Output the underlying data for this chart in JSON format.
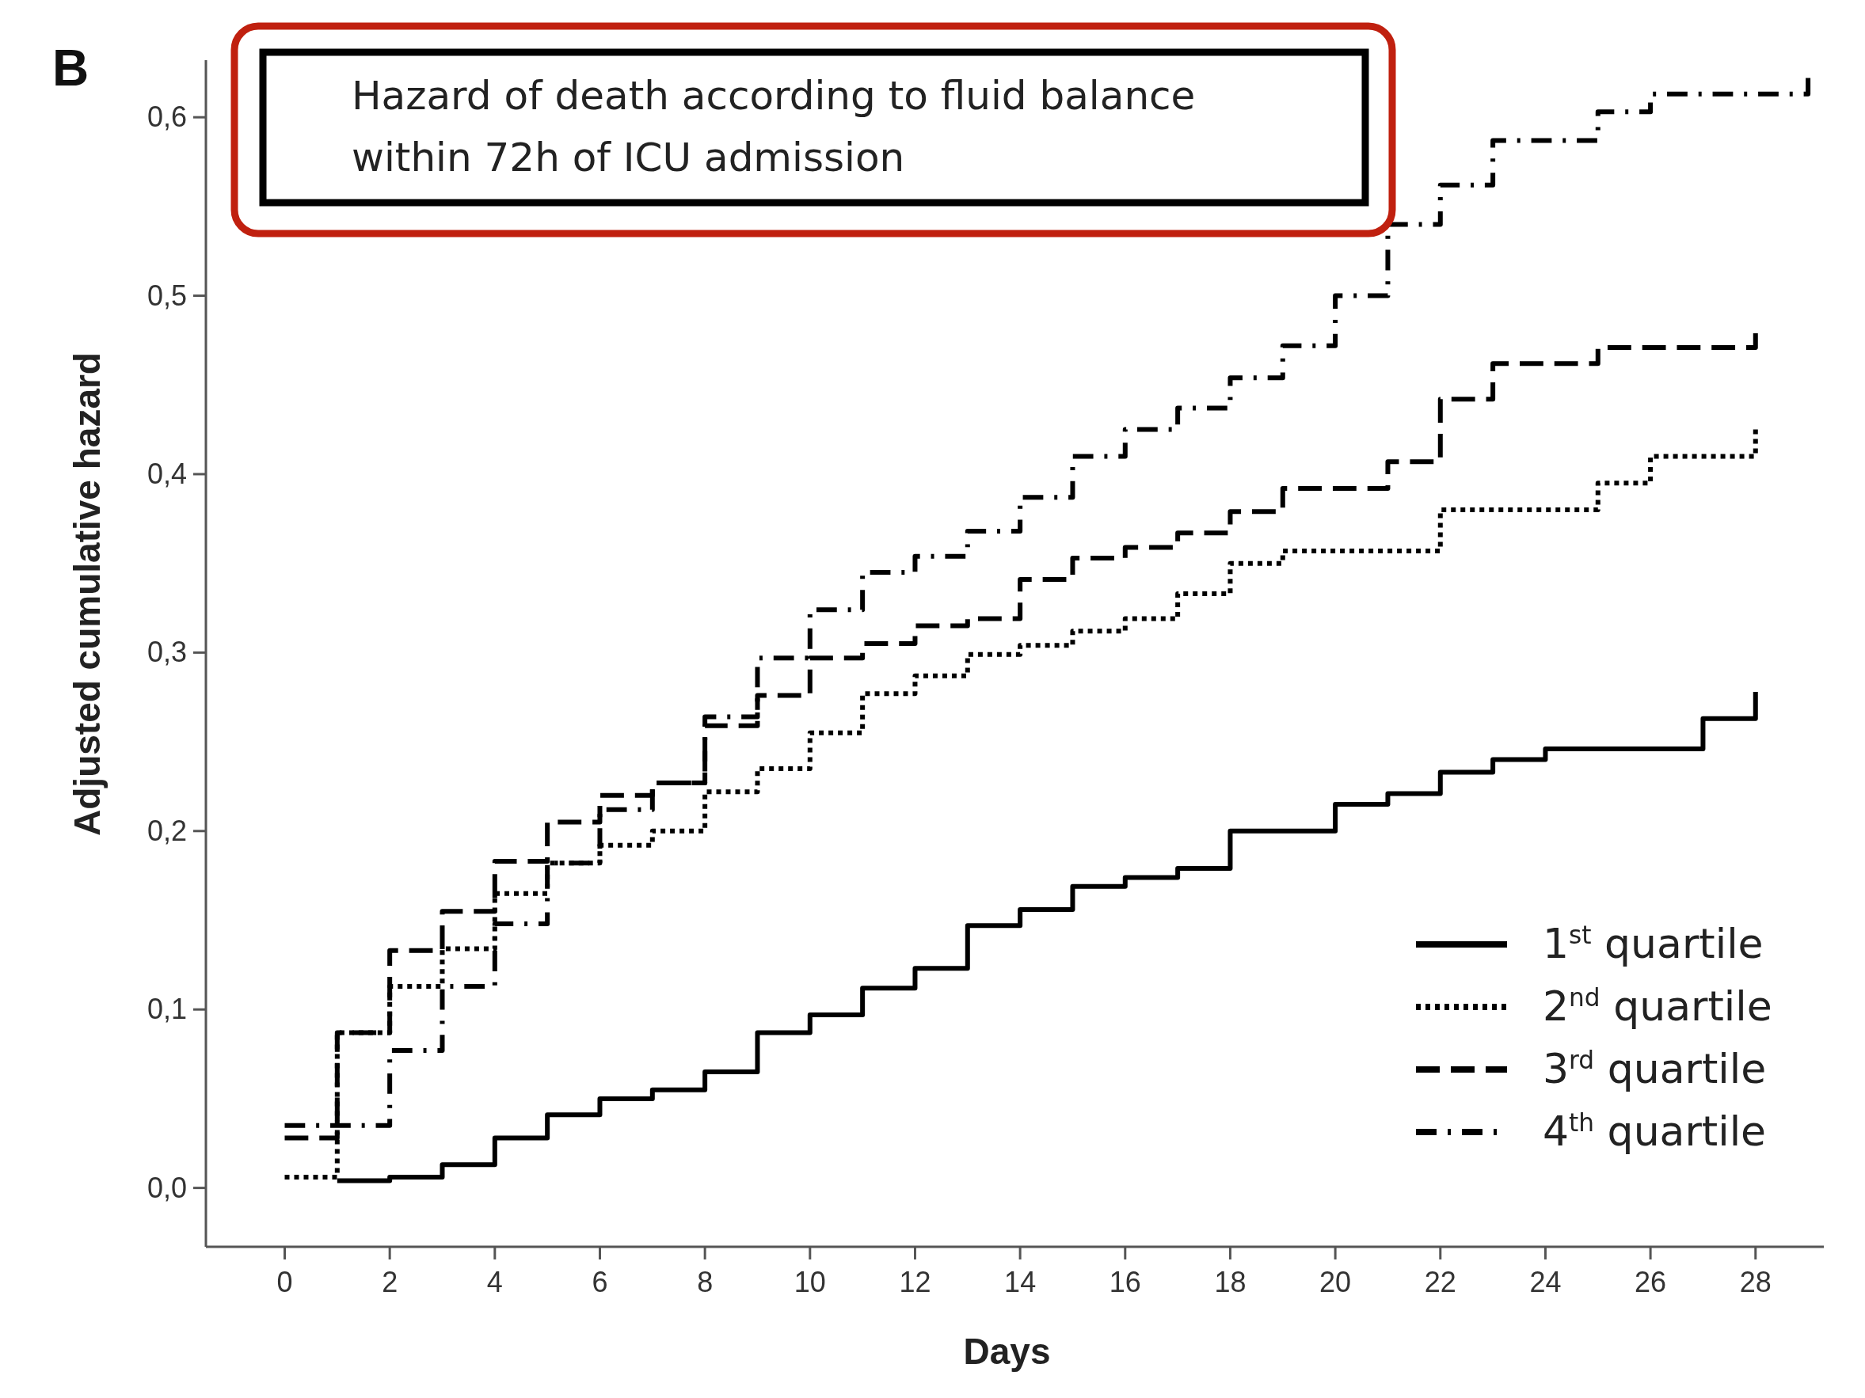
{
  "chart_data": {
    "type": "step",
    "title": "Hazard of death according to fluid balance within 72h of ICU admission",
    "xlabel": "Days",
    "ylabel": "Adjusted cumulative hazard",
    "annotations": [
      "B"
    ],
    "xlim": [
      -1.5,
      29.3
    ],
    "xticks": [
      0,
      2,
      4,
      6,
      8,
      10,
      12,
      14,
      16,
      18,
      20,
      22,
      24,
      26,
      28
    ],
    "ylim": [
      -0.033,
      0.632
    ],
    "yticks": [
      {
        "value": 0,
        "label": "0,0"
      },
      {
        "value": 0.1,
        "label": "0,1"
      },
      {
        "value": 0.2,
        "label": "0,2"
      },
      {
        "value": 0.3,
        "label": "0,3"
      },
      {
        "value": 0.4,
        "label": "0,4"
      },
      {
        "value": 0.5,
        "label": "0,5"
      },
      {
        "value": 0.6,
        "label": "0,6"
      }
    ],
    "grid": false,
    "legend": "bottom right",
    "marker": "none",
    "series": [
      {
        "name": "1$^{st}$ quartile",
        "color": "#000000",
        "line_style": "solid",
        "x": [
          1,
          2,
          3,
          4,
          5,
          6,
          7,
          8,
          9,
          10,
          11,
          12,
          13,
          14,
          15,
          16,
          17,
          18,
          19,
          20,
          21,
          22,
          23,
          24,
          25,
          26,
          27,
          28
        ],
        "values": [
          0.004,
          0.006,
          0.013,
          0.028,
          0.041,
          0.05,
          0.055,
          0.065,
          0.087,
          0.097,
          0.112,
          0.123,
          0.147,
          0.156,
          0.169,
          0.174,
          0.179,
          0.2,
          0.2,
          0.215,
          0.221,
          0.233,
          0.24,
          0.246,
          0.246,
          0.246,
          0.263,
          0.278
        ]
      },
      {
        "name": "2$^{nd}$ quartile",
        "color": "#000000",
        "line_style": "dotted",
        "x": [
          0,
          1,
          2,
          3,
          4,
          5,
          6,
          7,
          8,
          9,
          10,
          11,
          12,
          13,
          14,
          15,
          16,
          17,
          18,
          19,
          20,
          21,
          22,
          23,
          24,
          25,
          26,
          27,
          28
        ],
        "values": [
          0.006,
          0.087,
          0.113,
          0.134,
          0.165,
          0.182,
          0.192,
          0.2,
          0.222,
          0.235,
          0.255,
          0.277,
          0.287,
          0.299,
          0.304,
          0.312,
          0.319,
          0.333,
          0.35,
          0.357,
          0.357,
          0.357,
          0.38,
          0.38,
          0.38,
          0.395,
          0.41,
          0.41,
          0.425
        ]
      },
      {
        "name": "3$^{rd}$ quartile",
        "color": "#000000",
        "line_style": "dashed",
        "x": [
          0,
          1,
          2,
          3,
          4,
          5,
          6,
          7,
          8,
          9,
          10,
          11,
          12,
          13,
          14,
          15,
          16,
          17,
          18,
          19,
          20,
          21,
          22,
          23,
          24,
          25,
          26,
          27,
          28
        ],
        "values": [
          0.028,
          0.087,
          0.133,
          0.155,
          0.183,
          0.205,
          0.22,
          0.227,
          0.259,
          0.276,
          0.297,
          0.305,
          0.315,
          0.319,
          0.341,
          0.353,
          0.359,
          0.367,
          0.379,
          0.392,
          0.392,
          0.407,
          0.442,
          0.462,
          0.462,
          0.471,
          0.471,
          0.471,
          0.479
        ]
      },
      {
        "name": "4$^{th}$ quartile",
        "color": "#000000",
        "line_style": "dashdot",
        "x": [
          0,
          1,
          2,
          3,
          4,
          5,
          6,
          7,
          8,
          9,
          10,
          11,
          12,
          13,
          14,
          15,
          16,
          17,
          18,
          19,
          20,
          21,
          22,
          23,
          24,
          25,
          26,
          27,
          28,
          29
        ],
        "values": [
          0.035,
          0.035,
          0.077,
          0.113,
          0.148,
          0.182,
          0.212,
          0.227,
          0.264,
          0.297,
          0.324,
          0.345,
          0.354,
          0.368,
          0.387,
          0.41,
          0.425,
          0.437,
          0.454,
          0.472,
          0.5,
          0.54,
          0.562,
          0.587,
          0.587,
          0.603,
          0.613,
          0.613,
          0.613,
          0.622
        ]
      }
    ]
  }
}
